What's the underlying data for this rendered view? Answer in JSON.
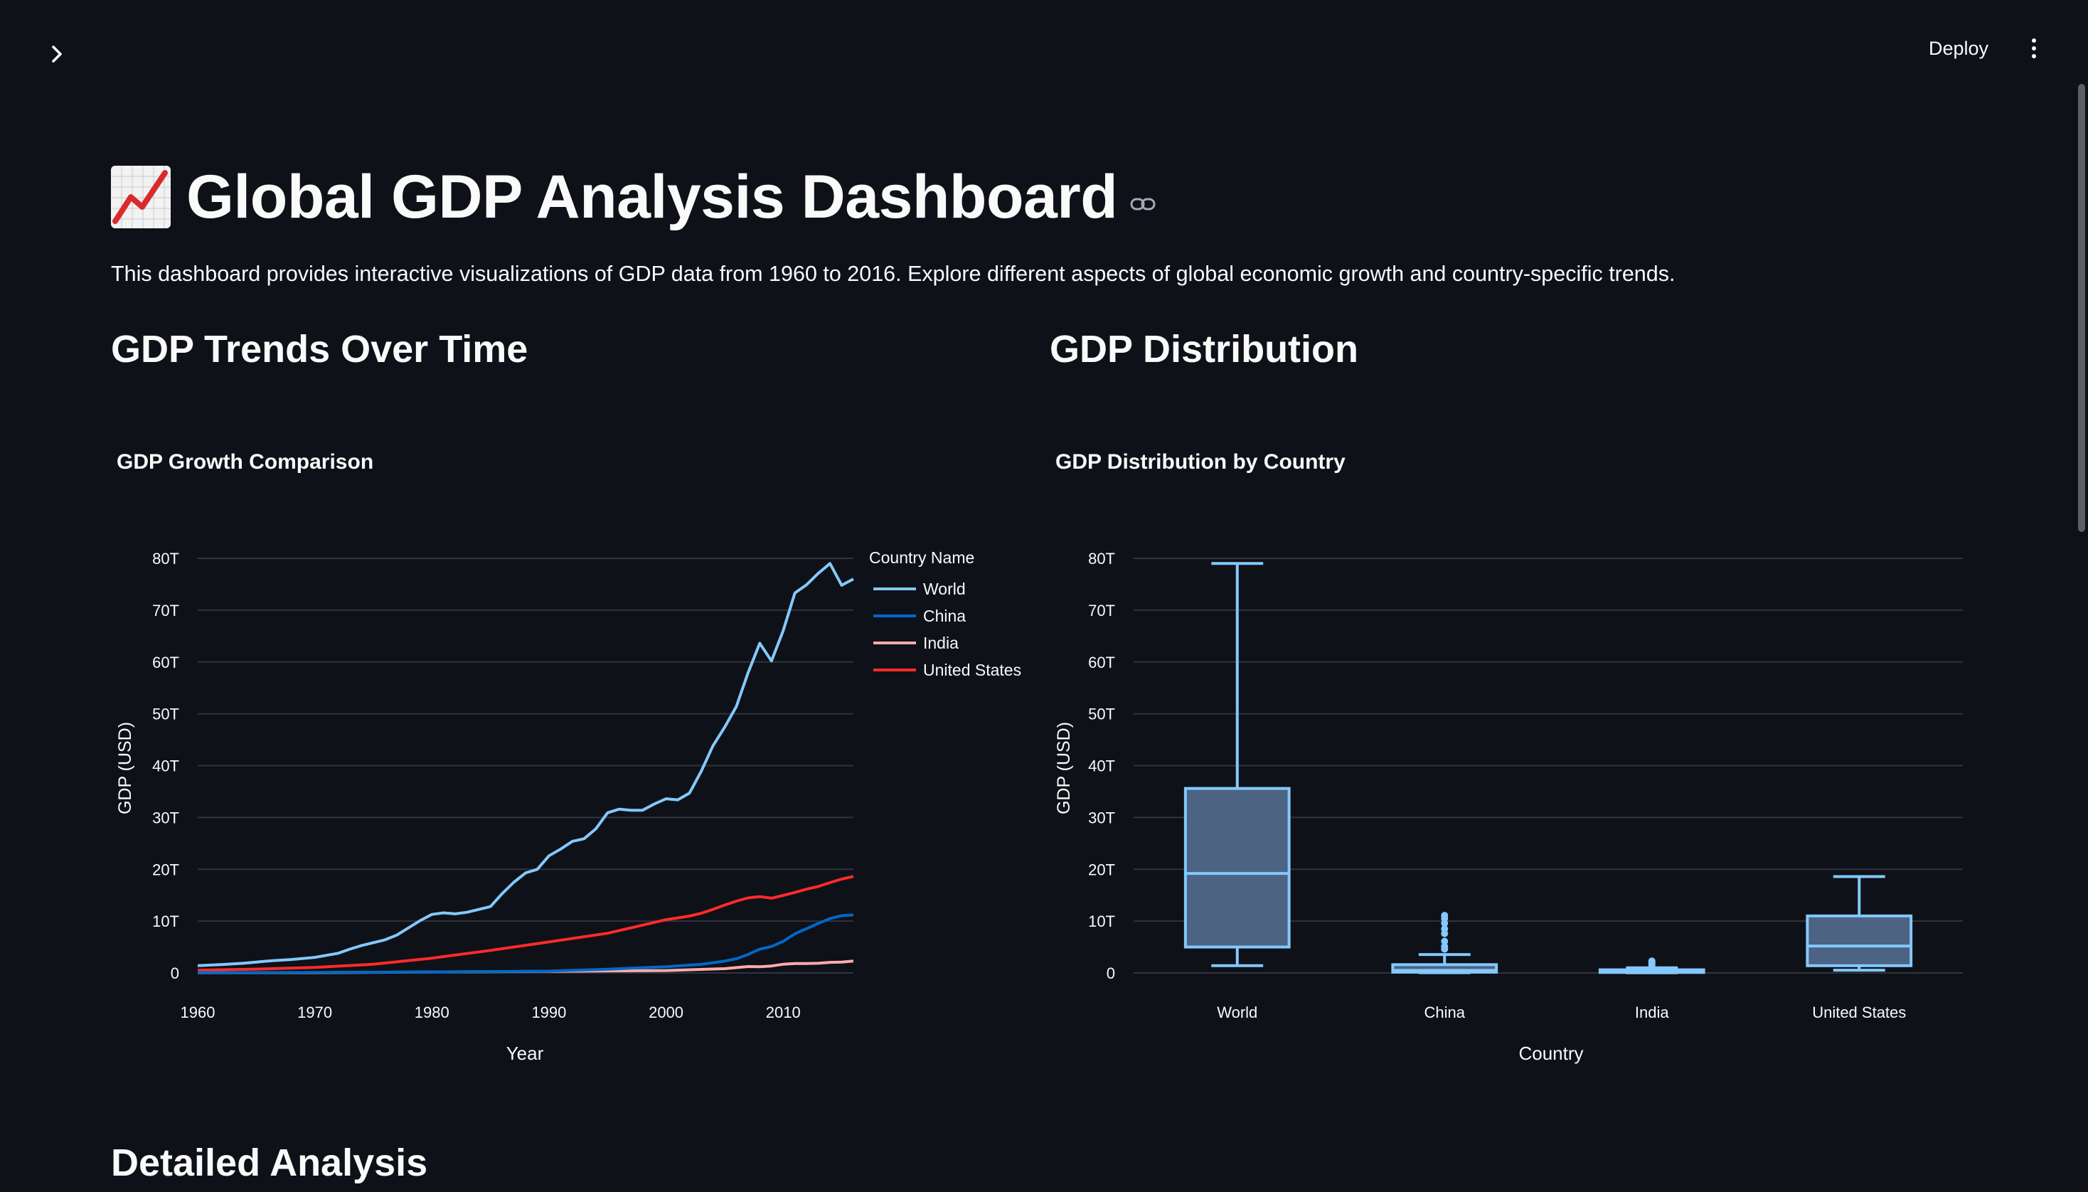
{
  "header": {
    "deploy_label": "Deploy"
  },
  "page": {
    "title": "Global GDP Analysis Dashboard",
    "intro": "This dashboard provides interactive visualizations of GDP data from 1960 to 2016. Explore different aspects of global economic growth and country-specific trends."
  },
  "sections": {
    "trends_heading": "GDP Trends Over Time",
    "distribution_heading": "GDP Distribution",
    "detailed_heading": "Detailed Analysis"
  },
  "colors": {
    "background": "#0e1117",
    "grid": "#31333f",
    "world": "#83c9ff",
    "china": "#0068c9",
    "india": "#ffabab",
    "united_states": "#ff2b2b",
    "box_fill": "#4c6383",
    "box_stroke": "#83c9ff"
  },
  "chart_data": [
    {
      "type": "line",
      "title": "GDP Growth Comparison",
      "xlabel": "Year",
      "ylabel": "GDP (USD)",
      "xlim": [
        1960,
        2016
      ],
      "ylim": [
        0,
        80
      ],
      "x_ticks": [
        "1960",
        "1970",
        "1980",
        "1990",
        "2000",
        "2010"
      ],
      "y_ticks": [
        "0",
        "10T",
        "20T",
        "30T",
        "40T",
        "50T",
        "60T",
        "70T",
        "80T"
      ],
      "legend_title": "Country Name",
      "legend_position": "top-right",
      "grid": true,
      "series": [
        {
          "name": "World",
          "color": "#83c9ff",
          "x": [
            1960,
            1962,
            1964,
            1966,
            1968,
            1970,
            1972,
            1973,
            1974,
            1976,
            1977,
            1978,
            1979,
            1980,
            1981,
            1982,
            1983,
            1985,
            1986,
            1987,
            1988,
            1989,
            1990,
            1991,
            1992,
            1993,
            1994,
            1995,
            1996,
            1997,
            1998,
            1999,
            2000,
            2001,
            2002,
            2003,
            2004,
            2005,
            2006,
            2007,
            2008,
            2009,
            2010,
            2011,
            2012,
            2013,
            2014,
            2015,
            2016
          ],
          "values": [
            1.4,
            1.6,
            1.9,
            2.3,
            2.6,
            3.0,
            3.8,
            4.6,
            5.3,
            6.4,
            7.3,
            8.7,
            10.1,
            11.3,
            11.6,
            11.4,
            11.7,
            12.8,
            15.3,
            17.5,
            19.3,
            20.0,
            22.6,
            23.9,
            25.4,
            25.9,
            27.8,
            30.9,
            31.6,
            31.4,
            31.4,
            32.6,
            33.6,
            33.4,
            34.7,
            38.9,
            43.8,
            47.4,
            51.4,
            57.9,
            63.6,
            60.2,
            66.0,
            73.3,
            74.9,
            77.1,
            79.0,
            74.8,
            76.0
          ]
        },
        {
          "name": "China",
          "color": "#0068c9",
          "x": [
            1960,
            1970,
            1980,
            1990,
            1995,
            2000,
            2003,
            2004,
            2005,
            2006,
            2007,
            2008,
            2009,
            2010,
            2011,
            2012,
            2013,
            2014,
            2015,
            2016
          ],
          "values": [
            0.06,
            0.09,
            0.19,
            0.36,
            0.73,
            1.21,
            1.66,
            1.96,
            2.29,
            2.75,
            3.55,
            4.59,
            5.1,
            6.09,
            7.55,
            8.53,
            9.57,
            10.48,
            11.06,
            11.19
          ]
        },
        {
          "name": "India",
          "color": "#ffabab",
          "x": [
            1960,
            1970,
            1980,
            1990,
            2000,
            2005,
            2007,
            2008,
            2009,
            2010,
            2011,
            2012,
            2013,
            2014,
            2015,
            2016
          ],
          "values": [
            0.04,
            0.06,
            0.19,
            0.32,
            0.46,
            0.82,
            1.24,
            1.2,
            1.34,
            1.68,
            1.82,
            1.83,
            1.86,
            2.04,
            2.1,
            2.29
          ]
        },
        {
          "name": "United States",
          "color": "#ff2b2b",
          "x": [
            1960,
            1965,
            1970,
            1975,
            1980,
            1985,
            1990,
            1995,
            2000,
            2001,
            2002,
            2003,
            2004,
            2005,
            2006,
            2007,
            2008,
            2009,
            2010,
            2011,
            2012,
            2013,
            2014,
            2015,
            2016
          ],
          "values": [
            0.54,
            0.74,
            1.07,
            1.68,
            2.86,
            4.35,
            5.98,
            7.66,
            10.28,
            10.62,
            10.98,
            11.51,
            12.27,
            13.09,
            13.86,
            14.48,
            14.72,
            14.42,
            14.96,
            15.54,
            16.16,
            16.69,
            17.43,
            18.12,
            18.62
          ]
        }
      ]
    },
    {
      "type": "box",
      "title": "GDP Distribution by Country",
      "xlabel": "Country",
      "ylabel": "GDP (USD)",
      "ylim": [
        0,
        80
      ],
      "y_ticks": [
        "0",
        "10T",
        "20T",
        "30T",
        "40T",
        "50T",
        "60T",
        "70T",
        "80T"
      ],
      "categories": [
        "World",
        "China",
        "India",
        "United States"
      ],
      "grid": true,
      "boxes": [
        {
          "name": "World",
          "min": 1.4,
          "q1": 5.0,
          "median": 19.2,
          "q3": 35.6,
          "max": 79.0,
          "outliers": []
        },
        {
          "name": "China",
          "min": 0.05,
          "q1": 0.15,
          "median": 0.5,
          "q3": 1.6,
          "max": 3.55,
          "outliers": [
            4.6,
            5.1,
            6.1,
            7.6,
            8.5,
            9.6,
            10.5,
            11.1
          ]
        },
        {
          "name": "India",
          "min": 0.04,
          "q1": 0.1,
          "median": 0.27,
          "q3": 0.6,
          "max": 1.0,
          "outliers": [
            1.2,
            1.35,
            1.68,
            1.83,
            2.1,
            2.29
          ]
        },
        {
          "name": "United States",
          "min": 0.54,
          "q1": 1.4,
          "median": 5.2,
          "q3": 11.0,
          "max": 18.6,
          "outliers": []
        }
      ]
    }
  ]
}
